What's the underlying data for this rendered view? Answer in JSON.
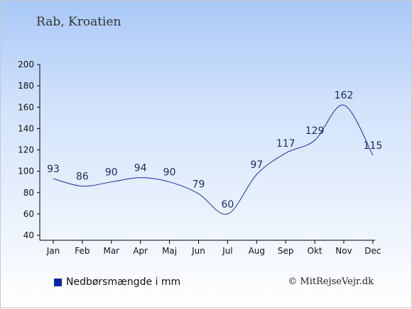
{
  "page": {
    "title": "Rab, Kroatien",
    "legend_label": "Nedbørsmængde i mm",
    "copyright": "© MitRejseVejr.dk"
  },
  "chart_data": {
    "type": "line",
    "title": "Rab, Kroatien",
    "categories": [
      "Jan",
      "Feb",
      "Mar",
      "Apr",
      "Maj",
      "Jun",
      "Jul",
      "Aug",
      "Sep",
      "Okt",
      "Nov",
      "Dec"
    ],
    "series": [
      {
        "name": "Nedbørsmængde i mm",
        "values": [
          93,
          86,
          90,
          94,
          90,
          79,
          60,
          97,
          117,
          129,
          162,
          115
        ]
      }
    ],
    "ylim": [
      40,
      200
    ],
    "yticks": [
      40,
      60,
      80,
      100,
      120,
      140,
      160,
      180,
      200
    ],
    "line_color": "#1a2c9c",
    "legend_color": "#0a26a8",
    "legend_position": "bottom-left",
    "grid": false
  }
}
